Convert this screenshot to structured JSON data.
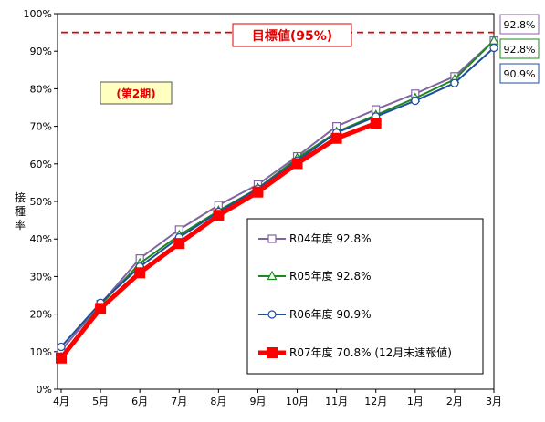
{
  "chart_data": {
    "type": "line",
    "ylabel": "接種率",
    "categories": [
      "4月",
      "5月",
      "6月",
      "7月",
      "8月",
      "9月",
      "10月",
      "11月",
      "12月",
      "1月",
      "2月",
      "3月"
    ],
    "ylim": [
      0,
      100
    ],
    "yticks": [
      "0%",
      "10%",
      "20%",
      "30%",
      "40%",
      "50%",
      "60%",
      "70%",
      "80%",
      "90%",
      "100%"
    ],
    "grid": false,
    "legend_position": "bottom-right",
    "target": {
      "value": 95,
      "label": "目標値(95%)",
      "color": "#e00000"
    },
    "period_label": "(第2期)",
    "series": [
      {
        "name": "R04年度 92.8%",
        "color": "#8064a2",
        "marker": "square",
        "values": [
          10.3,
          22.7,
          34.8,
          42.5,
          49.0,
          54.5,
          62.0,
          70.0,
          74.5,
          78.7,
          83.3,
          92.8
        ]
      },
      {
        "name": "R05年度 92.8%",
        "color": "#1e8a1e",
        "marker": "triangle",
        "values": [
          8.5,
          22.5,
          33.5,
          41.0,
          47.5,
          53.5,
          61.5,
          68.5,
          73.0,
          77.5,
          82.5,
          92.8
        ]
      },
      {
        "name": "R06年度 90.9%",
        "color": "#1f4e9c",
        "marker": "circle",
        "values": [
          11.3,
          23.0,
          32.6,
          40.4,
          47.2,
          53.4,
          60.9,
          68.3,
          72.6,
          76.8,
          81.5,
          90.9
        ]
      },
      {
        "name": "R07年度 70.8% (12月末速報値)",
        "color": "#ff0000",
        "marker": "square-filled",
        "values": [
          8.3,
          21.5,
          31.0,
          38.8,
          46.3,
          52.5,
          60.1,
          66.8,
          70.8,
          null,
          null,
          null
        ]
      }
    ],
    "end_labels": [
      {
        "text": "92.8%",
        "color": "#8064a2"
      },
      {
        "text": "92.8%",
        "color": "#1e8a1e"
      },
      {
        "text": "90.9%",
        "color": "#1f4e9c"
      }
    ]
  }
}
